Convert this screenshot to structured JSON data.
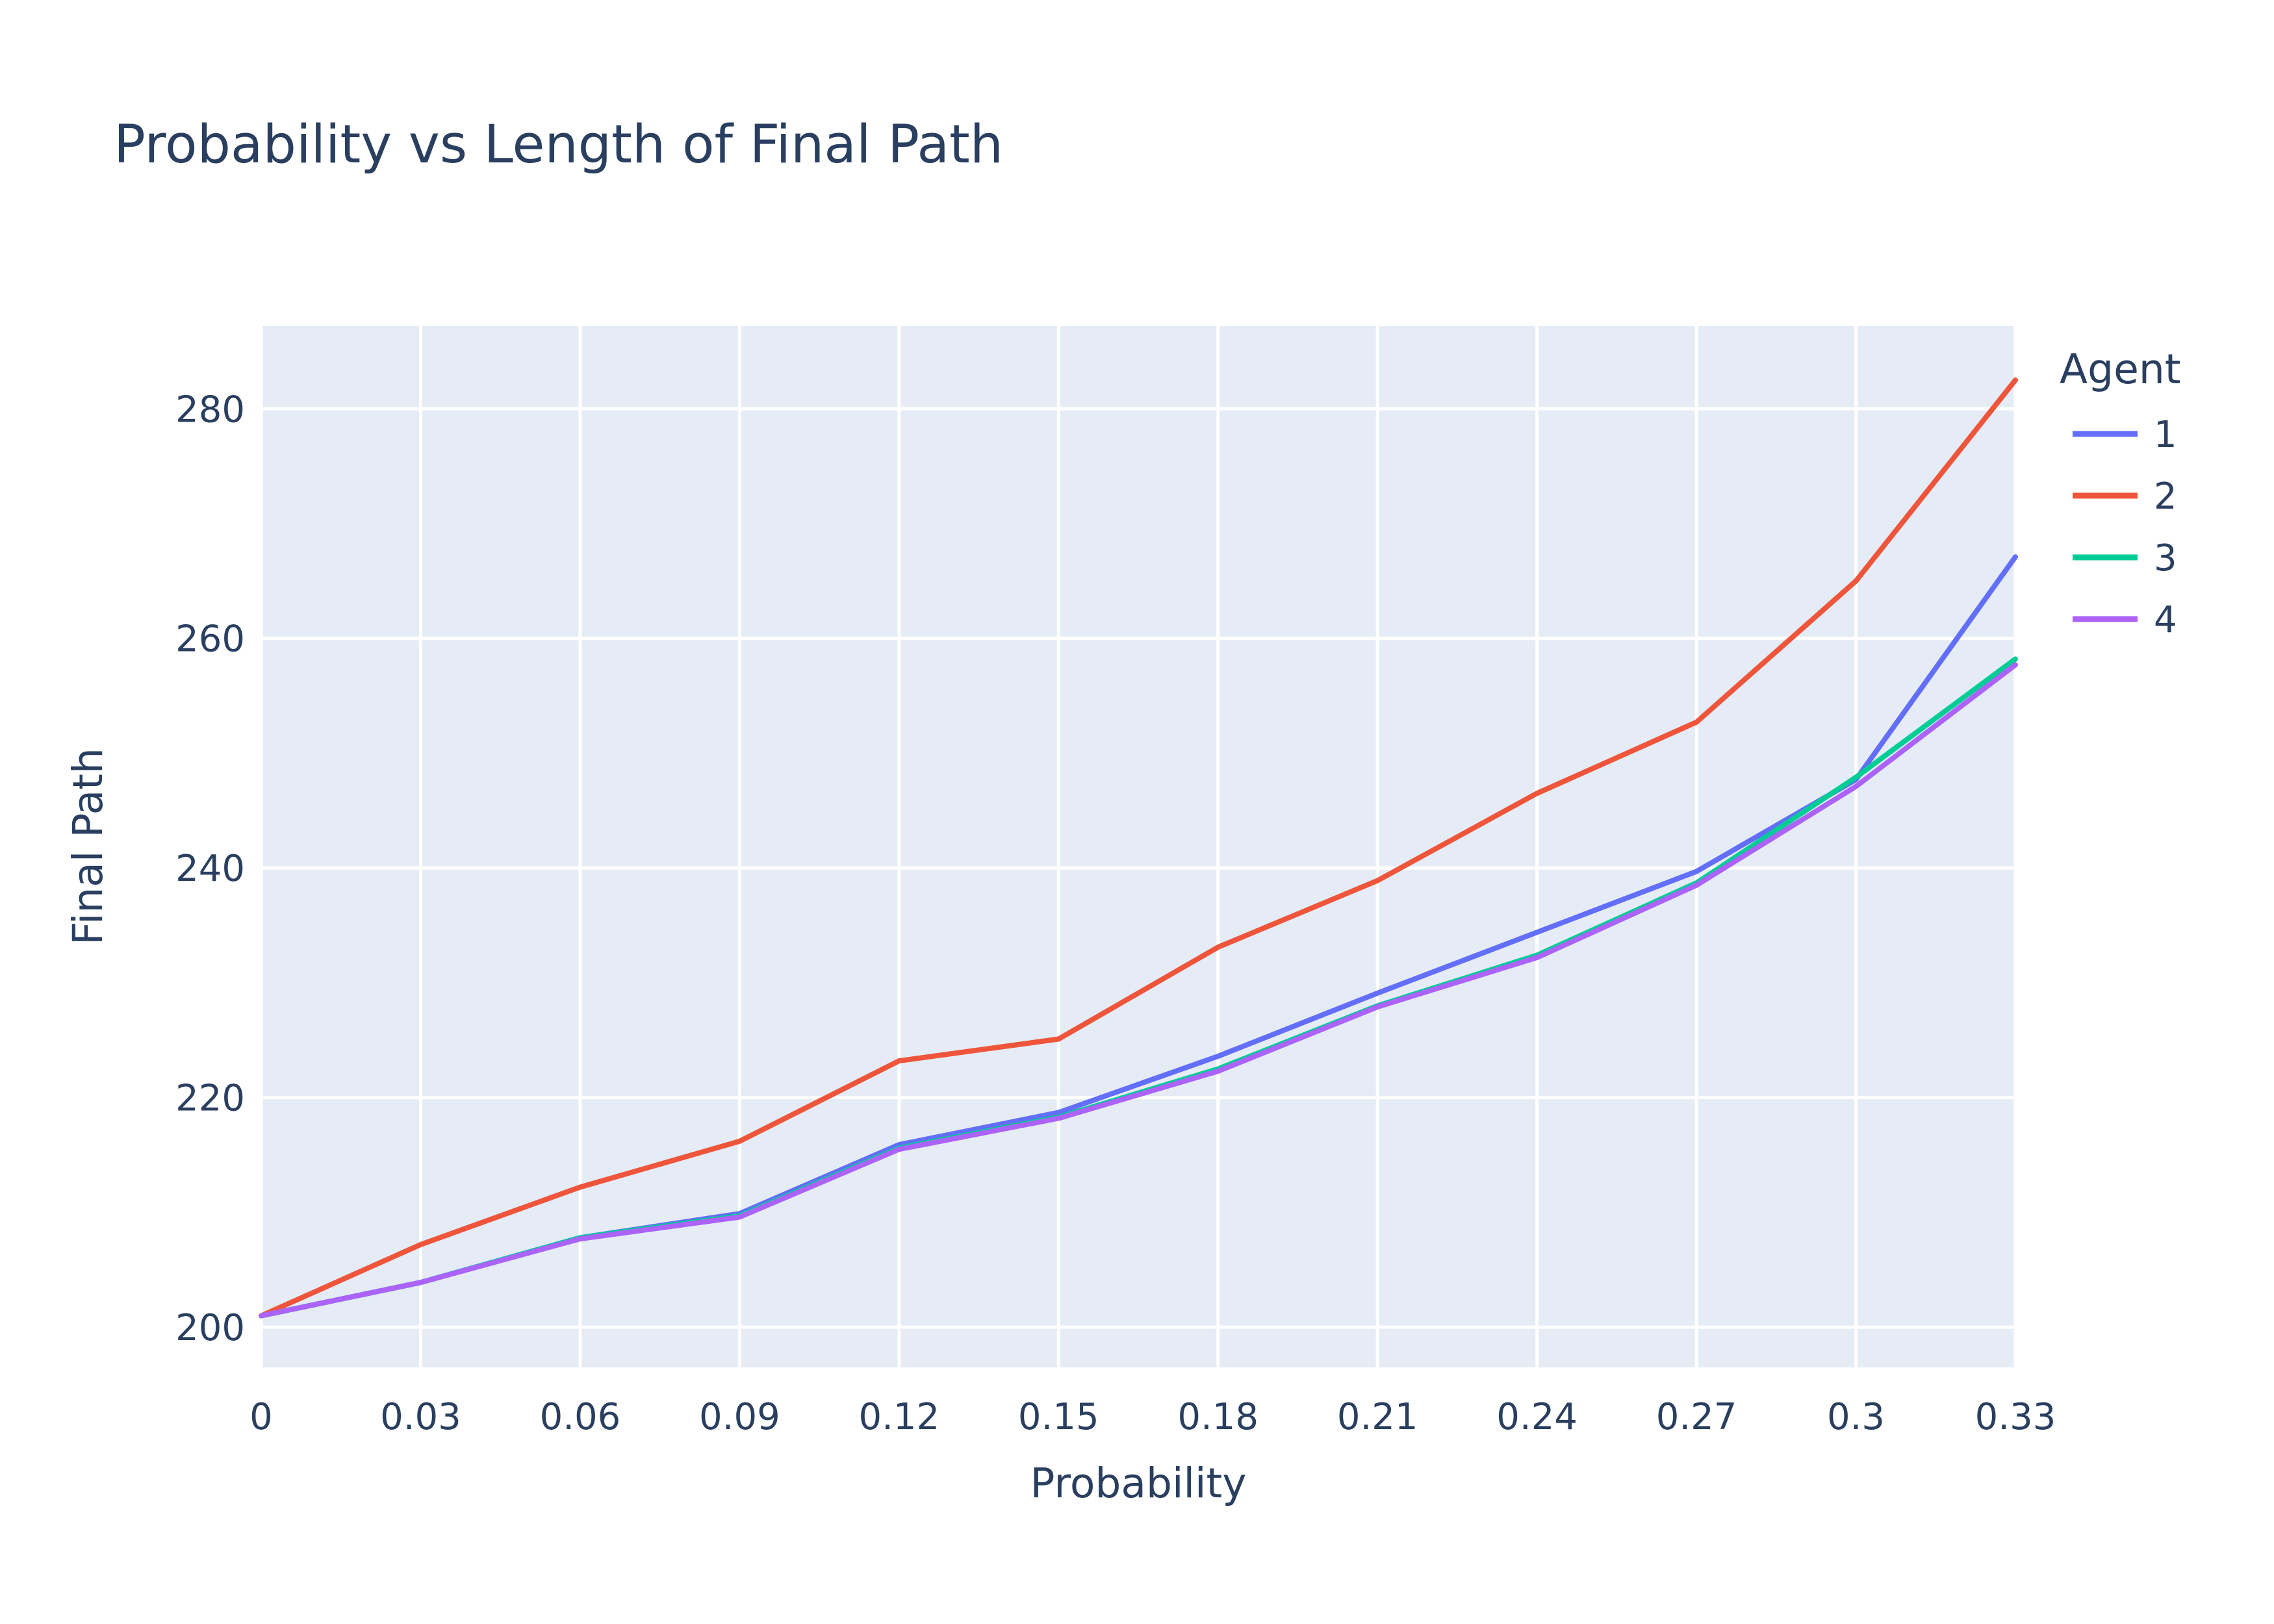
{
  "chart_data": {
    "type": "line",
    "title": "Probability vs Length of Final Path",
    "xlabel": "Probability",
    "ylabel": "Final Path",
    "xlim": [
      0,
      0.33
    ],
    "ylim": [
      196.5,
      287.2
    ],
    "x_ticks": [
      "0",
      "0.03",
      "0.06",
      "0.09",
      "0.12",
      "0.15",
      "0.18",
      "0.21",
      "0.24",
      "0.27",
      "0.3",
      "0.33"
    ],
    "y_ticks": [
      "200",
      "220",
      "240",
      "260",
      "280"
    ],
    "grid": true,
    "legend_title": "Agent",
    "legend_position": "top-right, outside plot",
    "plot_background": "#e5ecf6",
    "x": [
      0,
      0.03,
      0.06,
      0.09,
      0.12,
      0.15,
      0.18,
      0.21,
      0.24,
      0.27,
      0.3,
      0.33
    ],
    "series": [
      {
        "name": "1",
        "color": "#636efa",
        "values": [
          201.0,
          203.9,
          207.8,
          209.9,
          215.9,
          218.7,
          223.6,
          229.1,
          234.4,
          239.7,
          247.7,
          267.1
        ]
      },
      {
        "name": "2",
        "color": "#ef553b",
        "values": [
          201.0,
          207.2,
          212.2,
          216.2,
          223.2,
          225.1,
          233.1,
          238.9,
          246.5,
          252.7,
          265.0,
          282.5
        ]
      },
      {
        "name": "3",
        "color": "#00cc96",
        "values": [
          201.0,
          203.9,
          207.8,
          209.7,
          215.6,
          218.3,
          222.5,
          228.0,
          232.4,
          238.7,
          247.9,
          258.2
        ]
      },
      {
        "name": "4",
        "color": "#ab63fa",
        "values": [
          201.0,
          203.9,
          207.7,
          209.6,
          215.5,
          218.2,
          222.3,
          227.9,
          232.2,
          238.5,
          247.1,
          257.7
        ]
      }
    ]
  }
}
